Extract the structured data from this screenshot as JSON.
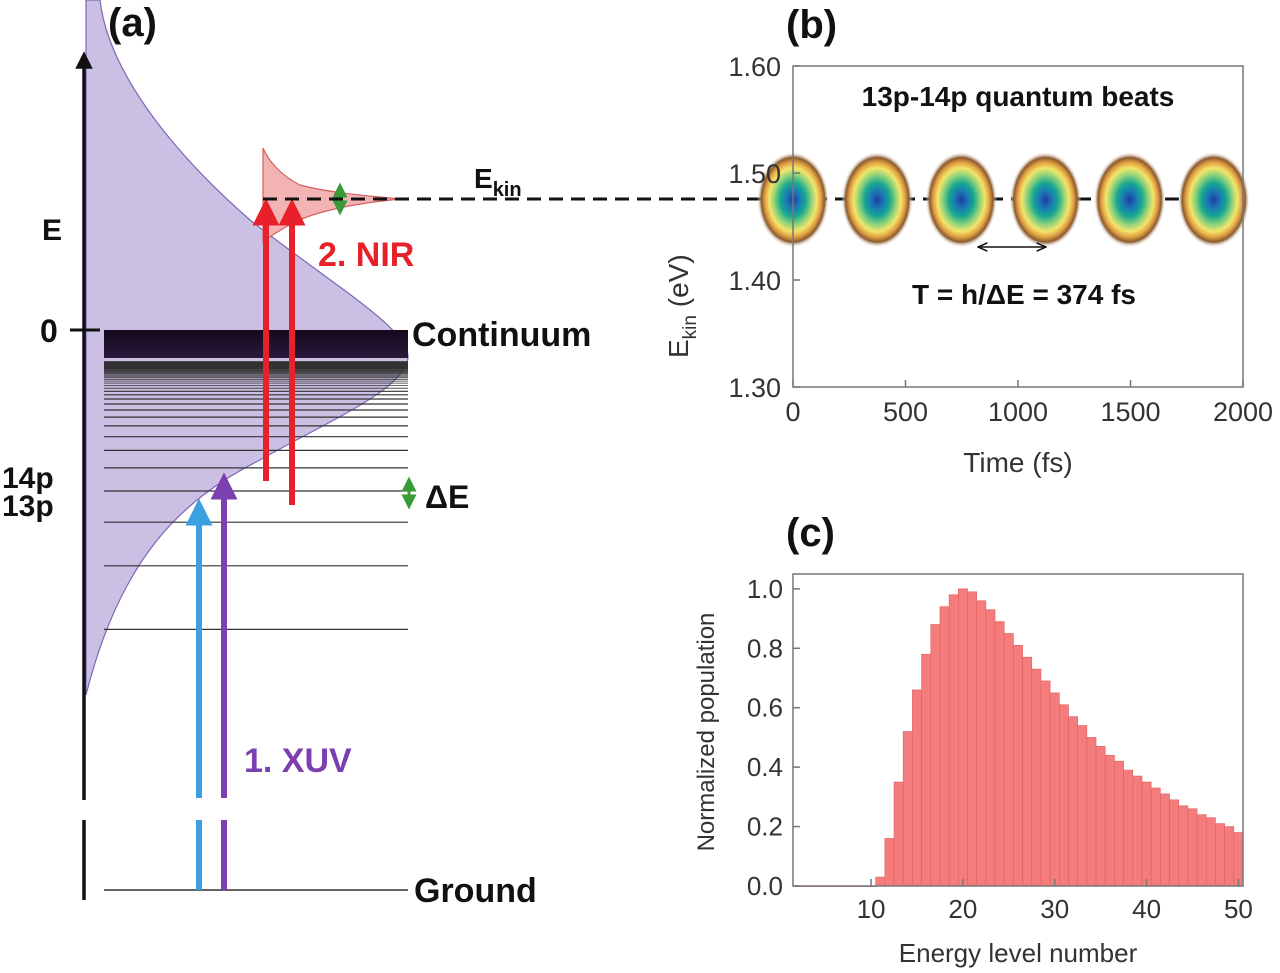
{
  "colors": {
    "lavender": "#cbbfe3",
    "lavender_edge": "#7a68b8",
    "red": "#e8202a",
    "blue": "#3aa0e0",
    "purple": "#7b3fb0",
    "green": "#3a9a3a",
    "bar_fill": "#f47c7c",
    "bar_edge": "#e06060"
  },
  "panel_a": {
    "label": "(a)",
    "axis_label": "E",
    "zero_label": "0",
    "continuum_label": "Continuum",
    "level_14p": "14p",
    "level_13p": "13p",
    "delta_e_label": "ΔE",
    "ground_label": "Ground",
    "xuv_label": "1. XUV",
    "nir_label": "2. NIR",
    "ekin_label_main": "E",
    "ekin_label_sub": "kin"
  },
  "panel_b": {
    "label": "(b)",
    "annotation_title": "13p-14p quantum beats",
    "period_text": "T = h/ΔE = 374 fs"
  },
  "panel_c": {
    "label": "(c)"
  },
  "chart_data": [
    {
      "panel": "b",
      "type": "heatmap",
      "xlabel": "Time (fs)",
      "ylabel_main": "E",
      "ylabel_sub": "kin",
      "ylabel_unit": " (eV)",
      "xlim": [
        0,
        2000
      ],
      "ylim": [
        1.3,
        1.6
      ],
      "xticks": [
        0,
        500,
        1000,
        1500,
        2000
      ],
      "xtick_labels": [
        "0",
        "500",
        "1000",
        "1500",
        "2000"
      ],
      "yticks": [
        1.3,
        1.4,
        1.5,
        1.6
      ],
      "ytick_labels": [
        "1.30",
        "1.40",
        "1.50",
        "1.60"
      ],
      "blob_energy": 1.475,
      "blob_times": [
        0,
        374,
        748,
        1122,
        1496,
        1870
      ],
      "period_fs": 374,
      "dashed_line_energy": 1.475
    },
    {
      "panel": "c",
      "type": "bar",
      "xlabel": "Energy level number",
      "ylabel": "Normalized population",
      "xlim": [
        1.5,
        50.5
      ],
      "ylim": [
        0,
        1.05
      ],
      "xticks": [
        10,
        20,
        30,
        40,
        50
      ],
      "xtick_labels": [
        "10",
        "20",
        "30",
        "40",
        "50"
      ],
      "yticks": [
        0,
        0.2,
        0.4,
        0.6,
        0.8,
        1.0
      ],
      "ytick_labels": [
        "0.0",
        "0.2",
        "0.4",
        "0.6",
        "0.8",
        "1.0"
      ],
      "categories": [
        2,
        3,
        4,
        5,
        6,
        7,
        8,
        9,
        10,
        11,
        12,
        13,
        14,
        15,
        16,
        17,
        18,
        19,
        20,
        21,
        22,
        23,
        24,
        25,
        26,
        27,
        28,
        29,
        30,
        31,
        32,
        33,
        34,
        35,
        36,
        37,
        38,
        39,
        40,
        41,
        42,
        43,
        44,
        45,
        46,
        47,
        48,
        49,
        50
      ],
      "values": [
        0.0,
        0.0,
        0.0,
        0.0,
        0.0,
        0.0,
        0.0,
        0.0,
        0.0,
        0.03,
        0.16,
        0.35,
        0.52,
        0.66,
        0.78,
        0.88,
        0.94,
        0.98,
        1.0,
        0.99,
        0.96,
        0.93,
        0.89,
        0.85,
        0.81,
        0.77,
        0.73,
        0.69,
        0.65,
        0.61,
        0.57,
        0.54,
        0.5,
        0.47,
        0.44,
        0.42,
        0.39,
        0.37,
        0.35,
        0.33,
        0.31,
        0.29,
        0.27,
        0.26,
        0.24,
        0.23,
        0.21,
        0.2,
        0.18
      ]
    }
  ]
}
